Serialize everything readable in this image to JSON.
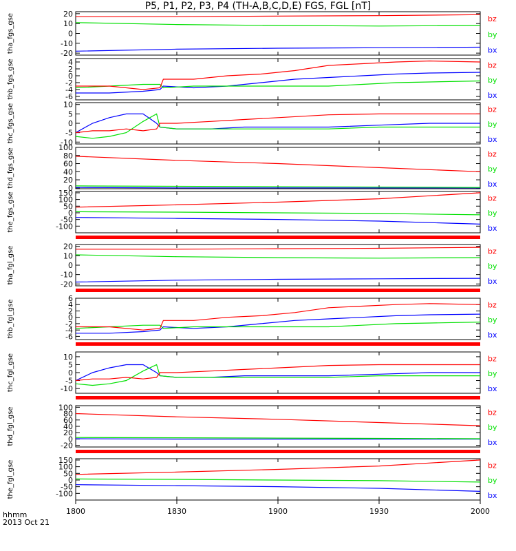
{
  "title": "P5, P1, P2, P3, P4 (TH-A,B,C,D,E) FGS, FGL [nT]",
  "time_axis": {
    "label_line1": "hhmm",
    "label_line2": "2013 Oct 21",
    "range": [
      "18:00",
      "20:00"
    ],
    "ticks": [
      "1800",
      "1830",
      "1900",
      "1930",
      "2000"
    ]
  },
  "legend_labels": [
    "bz",
    "by",
    "bx"
  ],
  "colors": {
    "bx": "#0000ff",
    "by": "#00e000",
    "bz": "#ff0000",
    "bar": "#ff0000",
    "axis": "#000000"
  },
  "chart_data": [
    {
      "type": "line",
      "ylabel": "tha_fgs_gse",
      "ylim": [
        -22,
        22
      ],
      "yticks": [
        "20",
        "10",
        "0",
        "-10",
        "-20"
      ],
      "bar_below": false,
      "x": [
        "18:00",
        "18:30",
        "19:00",
        "19:30",
        "20:00"
      ],
      "series": [
        {
          "name": "bz",
          "values": [
            17,
            17,
            17.5,
            18,
            19
          ]
        },
        {
          "name": "by",
          "values": [
            11,
            9,
            8,
            7.5,
            8
          ]
        },
        {
          "name": "bx",
          "values": [
            -18,
            -16,
            -15,
            -14.5,
            -14
          ]
        }
      ]
    },
    {
      "type": "line",
      "ylabel": "thb_fgs_gse",
      "ylim": [
        -7,
        5
      ],
      "yticks": [
        "4",
        "2",
        "0",
        "-2",
        "-4",
        "-6"
      ],
      "bar_below": false,
      "x": [
        "18:00",
        "18:10",
        "18:20",
        "18:25",
        "18:26",
        "18:35",
        "18:45",
        "18:55",
        "19:05",
        "19:15",
        "19:25",
        "19:35",
        "19:45",
        "20:00"
      ],
      "series": [
        {
          "name": "bz",
          "values": [
            -3,
            -3,
            -4,
            -3.5,
            -1,
            -1,
            0,
            0.5,
            1.5,
            3,
            3.5,
            4,
            4.3,
            4
          ]
        },
        {
          "name": "by",
          "values": [
            -3.5,
            -3,
            -2.5,
            -2.5,
            -3.5,
            -3,
            -3,
            -3,
            -3,
            -3,
            -2.5,
            -2,
            -1.8,
            -1.5
          ]
        },
        {
          "name": "bx",
          "values": [
            -5,
            -5,
            -4.5,
            -4,
            -3,
            -3.5,
            -3,
            -2,
            -1,
            -0.5,
            0,
            0.5,
            0.8,
            1
          ]
        }
      ]
    },
    {
      "type": "line",
      "ylabel": "thc_fgs_gse",
      "ylim": [
        -11,
        11
      ],
      "yticks": [
        "10",
        "5",
        "0",
        "-5",
        "-10"
      ],
      "bar_below": false,
      "x": [
        "18:00",
        "18:05",
        "18:10",
        "18:15",
        "18:20",
        "18:24",
        "18:25",
        "18:30",
        "18:40",
        "18:50",
        "19:00",
        "19:15",
        "19:30",
        "19:45",
        "20:00"
      ],
      "series": [
        {
          "name": "bz",
          "values": [
            -5,
            -4,
            -4,
            -3,
            -4,
            -3,
            0,
            0,
            1,
            2,
            3,
            4.5,
            5,
            5,
            5
          ]
        },
        {
          "name": "by",
          "values": [
            -7,
            -8,
            -7,
            -5,
            1,
            5,
            -2,
            -3,
            -3,
            -3,
            -3,
            -3,
            -2,
            -2,
            -2
          ]
        },
        {
          "name": "bx",
          "values": [
            -5,
            0,
            3,
            5,
            5,
            0,
            -2,
            -3,
            -3,
            -2,
            -2,
            -2,
            -1,
            0,
            0
          ]
        }
      ]
    },
    {
      "type": "line",
      "ylabel": "thd_fgs_gse",
      "ylim": [
        -2,
        100
      ],
      "yticks": [
        "100",
        "80",
        "60",
        "40",
        "20",
        "0"
      ],
      "bar_below": false,
      "x": [
        "18:00",
        "18:30",
        "19:00",
        "19:30",
        "20:00"
      ],
      "series": [
        {
          "name": "bz",
          "values": [
            78,
            68,
            60,
            50,
            40
          ]
        },
        {
          "name": "by",
          "values": [
            5,
            4,
            3,
            2,
            1
          ]
        },
        {
          "name": "bx",
          "values": [
            1,
            0,
            0,
            0,
            0
          ]
        }
      ]
    },
    {
      "type": "line",
      "ylabel": "the_fgs_gse",
      "ylim": [
        -150,
        160
      ],
      "yticks": [
        "150",
        "100",
        "50",
        "0",
        "-50",
        "-100"
      ],
      "bar_below": true,
      "x": [
        "18:00",
        "18:30",
        "19:00",
        "19:30",
        "20:00"
      ],
      "series": [
        {
          "name": "bz",
          "values": [
            42,
            60,
            80,
            105,
            150
          ]
        },
        {
          "name": "by",
          "values": [
            8,
            5,
            0,
            -5,
            -15
          ]
        },
        {
          "name": "bx",
          "values": [
            -35,
            -42,
            -50,
            -62,
            -85
          ]
        }
      ]
    },
    {
      "type": "line",
      "ylabel": "tha_fgl_gse",
      "ylim": [
        -22,
        22
      ],
      "yticks": [
        "20",
        "10",
        "0",
        "-10",
        "-20"
      ],
      "bar_below": true,
      "x": [
        "18:00",
        "18:30",
        "19:00",
        "19:30",
        "20:00"
      ],
      "series": [
        {
          "name": "bz",
          "values": [
            17,
            17,
            17.5,
            18,
            19
          ]
        },
        {
          "name": "by",
          "values": [
            11,
            9,
            8,
            7.5,
            8
          ]
        },
        {
          "name": "bx",
          "values": [
            -18,
            -16,
            -15,
            -14.5,
            -14
          ]
        }
      ]
    },
    {
      "type": "line",
      "ylabel": "thb_fgl_gse",
      "ylim": [
        -7,
        6
      ],
      "yticks": [
        "6",
        "4",
        "2",
        "0",
        "-2",
        "-4",
        "-6"
      ],
      "bar_below": true,
      "x": [
        "18:00",
        "18:10",
        "18:20",
        "18:25",
        "18:26",
        "18:35",
        "18:45",
        "18:55",
        "19:05",
        "19:15",
        "19:25",
        "19:35",
        "19:45",
        "20:00"
      ],
      "series": [
        {
          "name": "bz",
          "values": [
            -3,
            -3,
            -4,
            -3.5,
            -1,
            -1,
            0,
            0.5,
            1.5,
            3,
            3.5,
            4,
            4.3,
            4
          ]
        },
        {
          "name": "by",
          "values": [
            -3.5,
            -3,
            -2.5,
            -2.5,
            -3.5,
            -3,
            -3,
            -3,
            -3,
            -3,
            -2.5,
            -2,
            -1.8,
            -1.5
          ]
        },
        {
          "name": "bx",
          "values": [
            -5,
            -5,
            -4.5,
            -4,
            -3,
            -3.5,
            -3,
            -2,
            -1,
            -0.5,
            0,
            0.5,
            0.8,
            1
          ]
        }
      ]
    },
    {
      "type": "line",
      "ylabel": "thc_fgl_gse",
      "ylim": [
        -13,
        13
      ],
      "yticks": [
        "10",
        "5",
        "0",
        "-5",
        "-10"
      ],
      "bar_below": true,
      "x": [
        "18:00",
        "18:05",
        "18:10",
        "18:15",
        "18:20",
        "18:24",
        "18:25",
        "18:30",
        "18:40",
        "18:50",
        "19:00",
        "19:15",
        "19:30",
        "19:45",
        "20:00"
      ],
      "series": [
        {
          "name": "bz",
          "values": [
            -5,
            -4,
            -4,
            -3,
            -4,
            -3,
            0,
            0,
            1,
            2,
            3,
            4.5,
            5,
            5,
            5
          ]
        },
        {
          "name": "by",
          "values": [
            -7,
            -8,
            -7,
            -5,
            1,
            5,
            -2,
            -3,
            -3,
            -3,
            -3,
            -3,
            -2,
            -2,
            -2
          ]
        },
        {
          "name": "bx",
          "values": [
            -5,
            0,
            3,
            5,
            5,
            0,
            -2,
            -3,
            -3,
            -2,
            -2,
            -2,
            -1,
            0,
            0
          ]
        }
      ]
    },
    {
      "type": "line",
      "ylabel": "thd_fgl_gse",
      "ylim": [
        -25,
        105
      ],
      "yticks": [
        "100",
        "80",
        "60",
        "40",
        "20",
        "0",
        "-20"
      ],
      "bar_below": true,
      "x": [
        "18:00",
        "18:30",
        "19:00",
        "19:30",
        "20:00"
      ],
      "series": [
        {
          "name": "bz",
          "values": [
            80,
            70,
            62,
            52,
            42
          ]
        },
        {
          "name": "by",
          "values": [
            5,
            4,
            3,
            2,
            1
          ]
        },
        {
          "name": "bx",
          "values": [
            1,
            0,
            0,
            0,
            0
          ]
        }
      ]
    },
    {
      "type": "line",
      "ylabel": "the_fgl_gse",
      "ylim": [
        -150,
        160
      ],
      "yticks": [
        "150",
        "100",
        "50",
        "0",
        "-50",
        "-100"
      ],
      "bar_below": false,
      "x": [
        "18:00",
        "18:30",
        "19:00",
        "19:30",
        "20:00"
      ],
      "series": [
        {
          "name": "bz",
          "values": [
            42,
            60,
            80,
            105,
            150
          ]
        },
        {
          "name": "by",
          "values": [
            8,
            5,
            0,
            -5,
            -15
          ]
        },
        {
          "name": "bx",
          "values": [
            -35,
            -42,
            -50,
            -62,
            -85
          ]
        }
      ]
    }
  ]
}
